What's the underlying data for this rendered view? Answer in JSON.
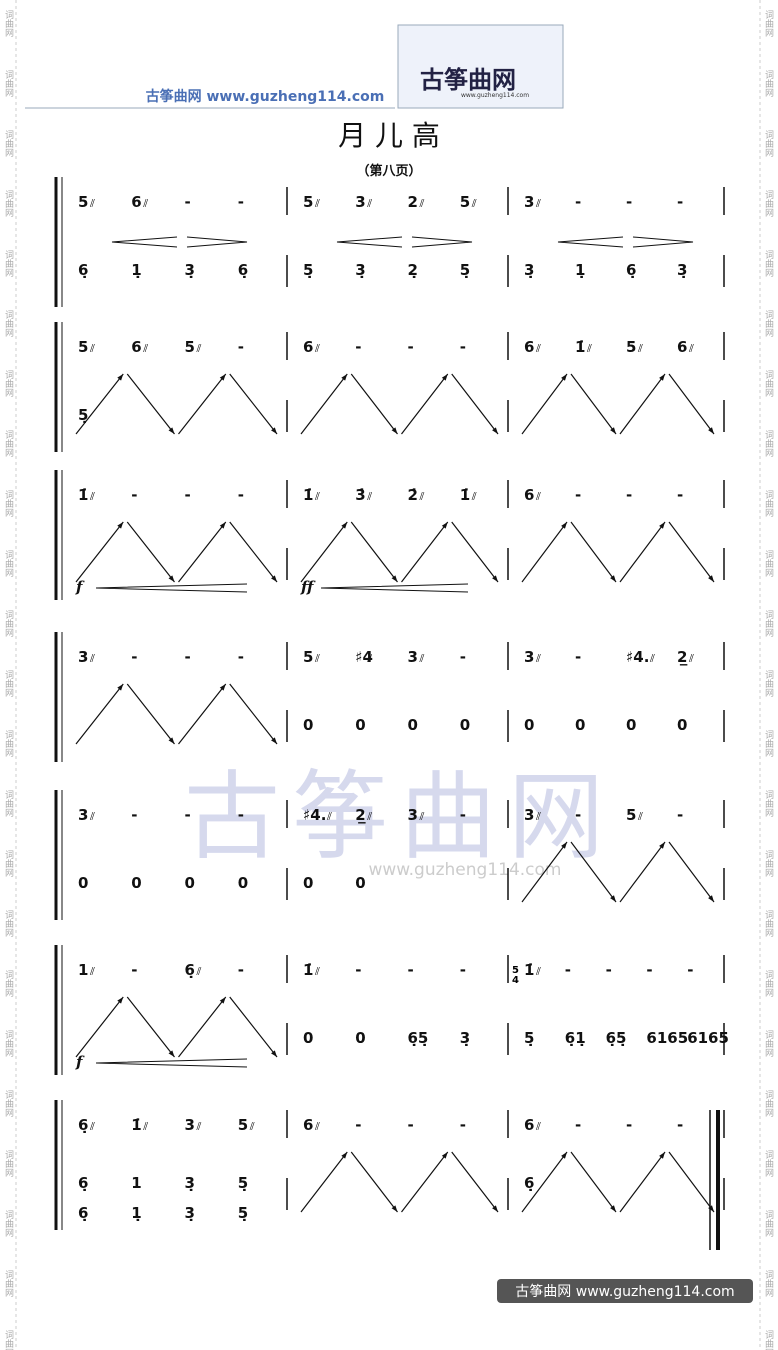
{
  "header": {
    "site": "古筝曲网",
    "url": "www.guzheng114.com",
    "logo": "古筝曲网",
    "logo_url": "www.guzheng114.com"
  },
  "title": "月 儿 高",
  "subtitle": "（第八页）",
  "margin_text": "词曲网",
  "tremolo": true,
  "systems": [
    {
      "upper": [
        [
          "5",
          "6",
          "-",
          "-"
        ],
        [
          "5",
          "3",
          "2",
          "5"
        ],
        [
          "3",
          "-",
          "-",
          "-"
        ]
      ],
      "lower": [
        [
          "6̣",
          "1̣",
          "3̣",
          "6̣"
        ],
        [
          "5̣",
          "3̣",
          "2̣",
          "5̣"
        ],
        [
          "3̣",
          "1̣",
          "6̣",
          "3̣"
        ]
      ]
    },
    {
      "upper": [
        [
          "5",
          "6",
          "5",
          "-"
        ],
        [
          "6",
          "-",
          "-",
          "-"
        ],
        [
          "6",
          "1̇",
          "5",
          "6"
        ]
      ],
      "lower": [
        [
          "5̣"
        ],
        [],
        []
      ]
    },
    {
      "upper": [
        [
          "1̇",
          "-",
          "-",
          "-"
        ],
        [
          "1̇",
          "3̇",
          "2̇",
          "1̇"
        ],
        [
          "6",
          "-",
          "-",
          "-"
        ]
      ],
      "dynamics": [
        "f",
        "ff"
      ]
    },
    {
      "upper": [
        [
          "3",
          "-",
          "-",
          "-"
        ],
        [
          "5",
          "♯4",
          "3",
          "-"
        ],
        [
          "3",
          "-",
          "♯4.",
          "2̲"
        ]
      ],
      "lower": [
        [],
        [
          "0",
          "0",
          "0",
          "0"
        ],
        [
          "0",
          "0",
          "0",
          "0"
        ]
      ]
    },
    {
      "upper": [
        [
          "3",
          "-",
          "-",
          "-"
        ],
        [
          "♯4.",
          "2̲",
          "3",
          "-"
        ],
        [
          "3",
          "-",
          "5",
          "-"
        ]
      ],
      "lower": [
        [
          "0",
          "0",
          "0",
          "0"
        ],
        [
          "0",
          "0"
        ],
        []
      ]
    },
    {
      "upper": [
        [
          "1",
          "-",
          "6̣",
          "-"
        ],
        [
          "1̇",
          "-",
          "-",
          "-"
        ],
        [
          "1̇",
          "-",
          "-",
          "-",
          "-"
        ]
      ],
      "lower": [
        [],
        [
          "0",
          "0",
          "6̣5̣",
          "3̣"
        ],
        [
          "5̣",
          "6̣1̣",
          "6̣5̣",
          "6165",
          "6165"
        ]
      ],
      "dynamics": [
        "f"
      ],
      "timesig": [
        "5",
        "4"
      ]
    },
    {
      "upper": [
        [
          "6̣",
          "1̇",
          "3",
          "5"
        ],
        [
          "6",
          "-",
          "-",
          "-"
        ],
        [
          "6",
          "-",
          "-",
          "-"
        ]
      ],
      "lower": [
        [
          "6̣",
          "1",
          "3̣",
          "5̣"
        ],
        [],
        [
          "6̣"
        ]
      ],
      "lower2": [
        [
          "6̣",
          "1̣",
          "3̣",
          "5̣"
        ],
        [],
        []
      ]
    }
  ],
  "watermark": {
    "text": "古筝曲网",
    "url": "www.guzheng114.com"
  },
  "footer": {
    "site": "古筝曲网",
    "url": "www.guzheng114.com"
  }
}
